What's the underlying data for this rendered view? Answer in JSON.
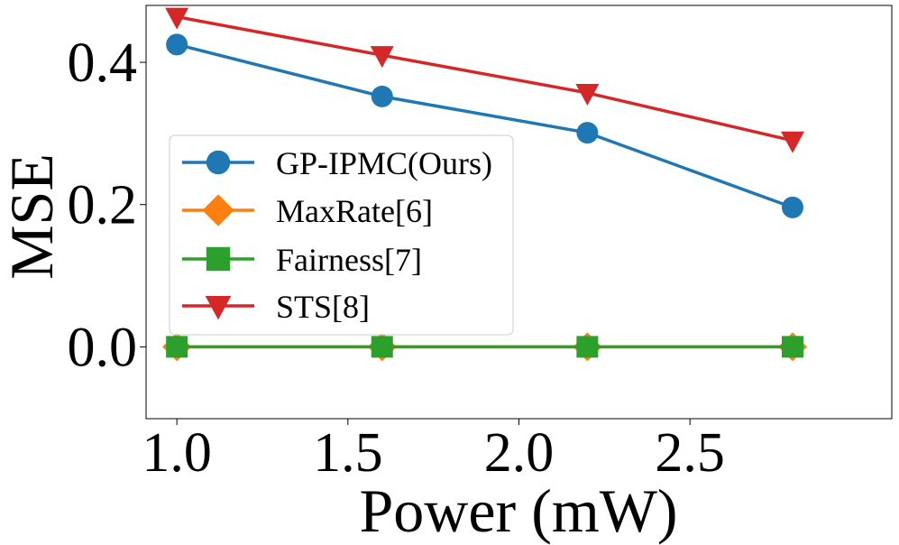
{
  "chart_data": {
    "type": "line",
    "title": "",
    "xlabel": "Power (mW)",
    "ylabel": "MSE",
    "xlim": [
      0.91,
      3.09
    ],
    "ylim": [
      -0.101,
      0.48
    ],
    "xticks": [
      1.0,
      1.5,
      2.0,
      2.5
    ],
    "xtick_labels": [
      "1.0",
      "1.5",
      "2.0",
      "2.5"
    ],
    "yticks": [
      0.0,
      0.2,
      0.4
    ],
    "ytick_labels": [
      "0.0",
      "0.2",
      "0.4"
    ],
    "grid": false,
    "legend_location": "center-left",
    "x": [
      1.0,
      1.6,
      2.2,
      2.8
    ],
    "series": [
      {
        "name": "GP-IPMC(Ours)",
        "color": "#1f77b4",
        "marker": "circle",
        "values": [
          0.425,
          0.352,
          0.301,
          0.196
        ]
      },
      {
        "name": "MaxRate[6]",
        "color": "#ff7f0e",
        "marker": "diamond",
        "values": [
          0.0,
          0.0,
          0.0,
          0.0
        ]
      },
      {
        "name": "Fairness[7]",
        "color": "#2ca02c",
        "marker": "square",
        "values": [
          0.0,
          0.0,
          0.0,
          0.0
        ]
      },
      {
        "name": "STS[8]",
        "color": "#d62728",
        "marker": "triangle-down",
        "values": [
          0.464,
          0.41,
          0.357,
          0.29
        ]
      }
    ]
  }
}
